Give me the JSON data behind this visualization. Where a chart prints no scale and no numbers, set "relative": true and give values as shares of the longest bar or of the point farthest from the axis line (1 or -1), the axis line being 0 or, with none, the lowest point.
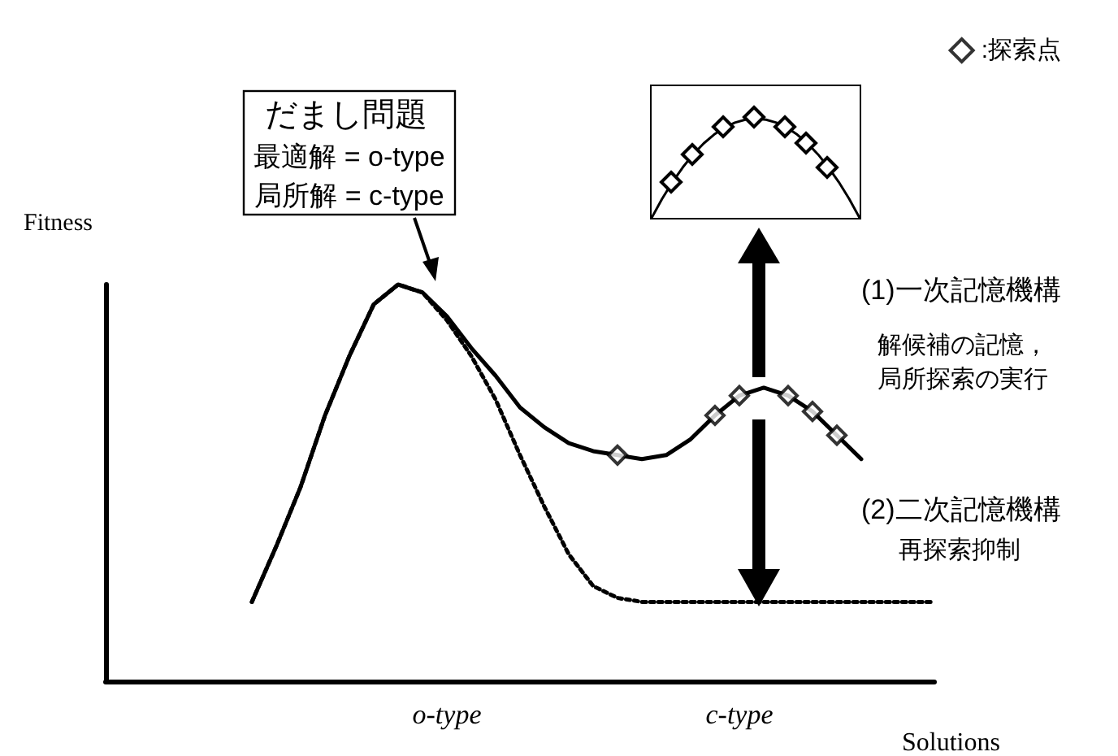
{
  "chart_data": [
    {
      "type": "line",
      "relative": true,
      "xlabel": "Solutions",
      "ylabel": "Fitness",
      "categories": [
        null,
        null,
        null,
        null,
        null,
        null,
        null,
        null,
        null,
        null,
        null,
        null,
        null,
        null,
        "o-type",
        null,
        null,
        null,
        null,
        null,
        null,
        null,
        null,
        null,
        null,
        null,
        "c-type",
        null,
        null,
        null,
        null,
        null,
        null,
        null,
        null
      ],
      "series": [
        {
          "color": "#000000",
          "line_style": "solid",
          "values": [
            null,
            null,
            null,
            null,
            null,
            null,
            0.2,
            0.34,
            0.49,
            0.67,
            0.82,
            0.95,
            1,
            0.98,
            0.92,
            0.84,
            0.77,
            0.69,
            0.64,
            0.6,
            0.58,
            0.57,
            0.56,
            0.57,
            0.61,
            0.67,
            0.72,
            0.74,
            0.72,
            0.68,
            0.62,
            0.56,
            null,
            null,
            null
          ]
        },
        {
          "color": "#000000",
          "line_style": "dotted",
          "values": [
            null,
            null,
            null,
            null,
            null,
            null,
            0.2,
            0.34,
            0.49,
            0.67,
            0.82,
            0.95,
            1,
            0.98,
            0.91,
            0.82,
            0.71,
            0.57,
            0.44,
            0.32,
            0.24,
            0.21,
            0.2,
            0.2,
            0.2,
            0.2,
            0.2,
            0.2,
            0.2,
            0.2,
            0.2,
            0.2,
            0.2,
            0.2,
            0.2
          ]
        },
        {
          "type": "scatter",
          "name": ":探索点",
          "color": "#000000",
          "marker": "diamond",
          "values": [
            null,
            null,
            null,
            null,
            null,
            null,
            null,
            null,
            null,
            null,
            null,
            null,
            null,
            null,
            null,
            null,
            null,
            null,
            null,
            null,
            null,
            0.57,
            null,
            null,
            null,
            0.67,
            0.72,
            null,
            0.72,
            0.68,
            0.62,
            null,
            null,
            null,
            null
          ]
        }
      ],
      "legend": "top right",
      "annotations": [
        "だまし問題",
        "最適解 = o-type",
        "局所解 = c-type",
        "(1)一次記憶機構",
        "解候補の記憶，",
        "局所探索の実行",
        "(2)二次記憶機構",
        "再探索抑制"
      ]
    },
    {
      "type": "line",
      "relative": true,
      "tick_labels": false,
      "categories": [
        null,
        null,
        null,
        null,
        null,
        null,
        null,
        null,
        null,
        null,
        null,
        null,
        null,
        null,
        null,
        null,
        null,
        null,
        null,
        null,
        null
      ],
      "series": [
        {
          "color": "#000000",
          "line_style": "solid",
          "values": [
            0,
            0.19,
            0.36,
            0.51,
            0.64,
            0.75,
            0.84,
            0.91,
            0.96,
            0.99,
            1,
            0.99,
            0.96,
            0.91,
            0.84,
            0.75,
            0.64,
            0.51,
            0.36,
            0.19,
            0
          ]
        }
      ]
    }
  ]
}
